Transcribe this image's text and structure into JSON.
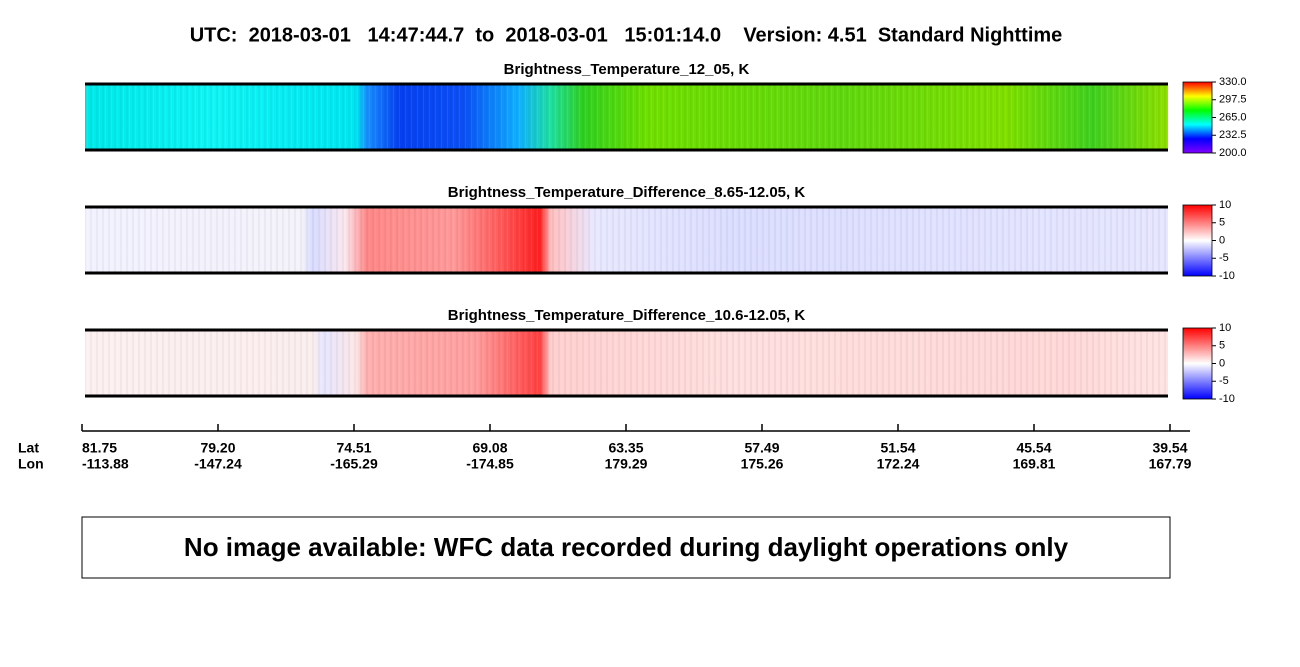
{
  "title": "UTC:  2018-03-01   14:47:44.7  to  2018-03-01   15:01:14.0    Version: 4.51  Standard Nighttime",
  "chart_data": [
    {
      "type": "heatmap",
      "title": "Brightness_Temperature_12_05, K",
      "colorbar": {
        "lim": [
          200,
          330
        ],
        "ticks": [
          {
            "value": 330,
            "label": "330.0"
          },
          297.5,
          {
            "value": 265,
            "label": "265.0"
          },
          232.5,
          {
            "value": 200,
            "label": "200.0"
          }
        ],
        "colors": [
          "#8000ff",
          "#0000ff",
          "#00ffff",
          "#00ff00",
          "#ffff00",
          "#ff0000"
        ]
      }
    },
    {
      "type": "heatmap",
      "title": "Brightness_Temperature_Difference_8.65-12.05, K",
      "colorbar": {
        "lim": [
          -10,
          10
        ],
        "ticks": [
          10,
          5,
          0,
          -5,
          -10
        ],
        "colors": [
          "#0000ff",
          "#ffffff",
          "#ff0000"
        ]
      }
    },
    {
      "type": "heatmap",
      "title": "Brightness_Temperature_Difference_10.6-12.05, K",
      "colorbar": {
        "lim": [
          -10,
          10
        ],
        "ticks": [
          10,
          5,
          0,
          -5,
          -10
        ],
        "colors": [
          "#0000ff",
          "#ffffff",
          "#ff0000"
        ]
      }
    }
  ],
  "x_axis": {
    "lat_label": "Lat",
    "lon_label": "Lon",
    "lat": [
      81.75,
      {
        "value": 79.2,
        "label": "79.20"
      },
      74.51,
      69.08,
      63.35,
      57.49,
      51.54,
      45.54,
      39.54
    ],
    "lon": [
      -113.88,
      -147.24,
      -165.29,
      -174.85,
      179.29,
      175.26,
      172.24,
      169.81,
      167.79
    ]
  },
  "message": "No image available: WFC data recorded during daylight operations only"
}
